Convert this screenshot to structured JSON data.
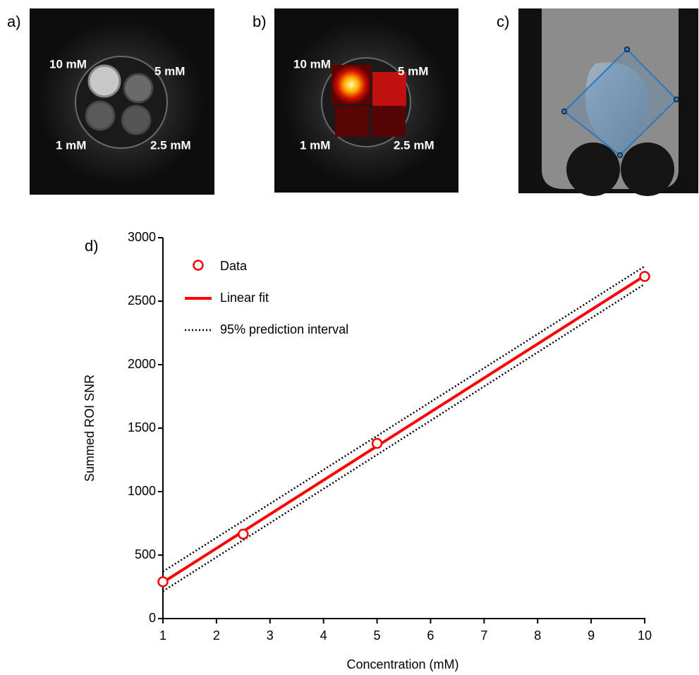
{
  "panels": [
    {
      "label": "a)",
      "annotations": [
        "10 mM",
        "5 mM",
        "1 mM",
        "2.5 mM"
      ]
    },
    {
      "label": "b)",
      "annotations": [
        "10 mM",
        "5 mM",
        "1 mM",
        "2.5 mM"
      ]
    },
    {
      "label": "c)"
    }
  ],
  "chart_data": {
    "type": "scatter",
    "panel_label": "d)",
    "xlabel": "Concentration (mM)",
    "ylabel": "Summed ROI SNR",
    "xlim": [
      1,
      10
    ],
    "ylim": [
      0,
      3000
    ],
    "xticks": [
      1,
      2,
      3,
      4,
      5,
      6,
      7,
      8,
      9,
      10
    ],
    "yticks": [
      0,
      500,
      1000,
      1500,
      2000,
      2500,
      3000
    ],
    "series": [
      {
        "name": "Data",
        "type": "scatter",
        "color": "#ff0000",
        "x": [
          1,
          2.5,
          5,
          10
        ],
        "values": [
          290,
          665,
          1380,
          2695
        ]
      },
      {
        "name": "Linear fit",
        "type": "line",
        "color": "#ff0000",
        "x": [
          1,
          10
        ],
        "values": [
          285,
          2700
        ]
      },
      {
        "name": "95% prediction interval",
        "type": "band",
        "color": "#000000",
        "x": [
          1,
          10
        ],
        "upper": [
          370,
          2775
        ],
        "lower": [
          215,
          2635
        ]
      }
    ]
  }
}
